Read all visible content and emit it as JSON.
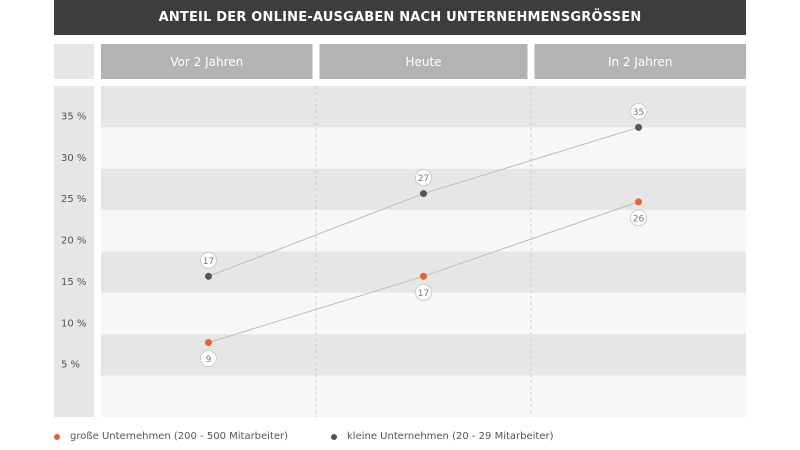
{
  "chart_data": {
    "type": "line",
    "title": "ANTEIL DER ONLINE-AUSGABEN NACH UNTERNEHMENSGRÖSSEN",
    "categories": [
      "Vor 2 Jahren",
      "Heute",
      "In 2 Jahren"
    ],
    "y_ticks": [
      "5 %",
      "10 %",
      "15 %",
      "20 %",
      "25 %",
      "30 %",
      "35 %"
    ],
    "y_tick_values": [
      5,
      10,
      15,
      20,
      25,
      30,
      35
    ],
    "ylim": [
      0,
      40
    ],
    "grid": true,
    "legend_position": "bottom",
    "series": [
      {
        "name": "große Unternehmen (200 - 500 Mitarbeiter)",
        "values": [
          9,
          17,
          26
        ],
        "data_labels": [
          "9",
          "17",
          "26"
        ],
        "label_position": "below",
        "color": "#e8622a"
      },
      {
        "name": "kleine Unternehmen (20 - 29 Mitarbeiter)",
        "values": [
          17,
          27,
          35
        ],
        "data_labels": [
          "17",
          "27",
          "35"
        ],
        "label_position": "above",
        "color": "#555555"
      }
    ]
  }
}
